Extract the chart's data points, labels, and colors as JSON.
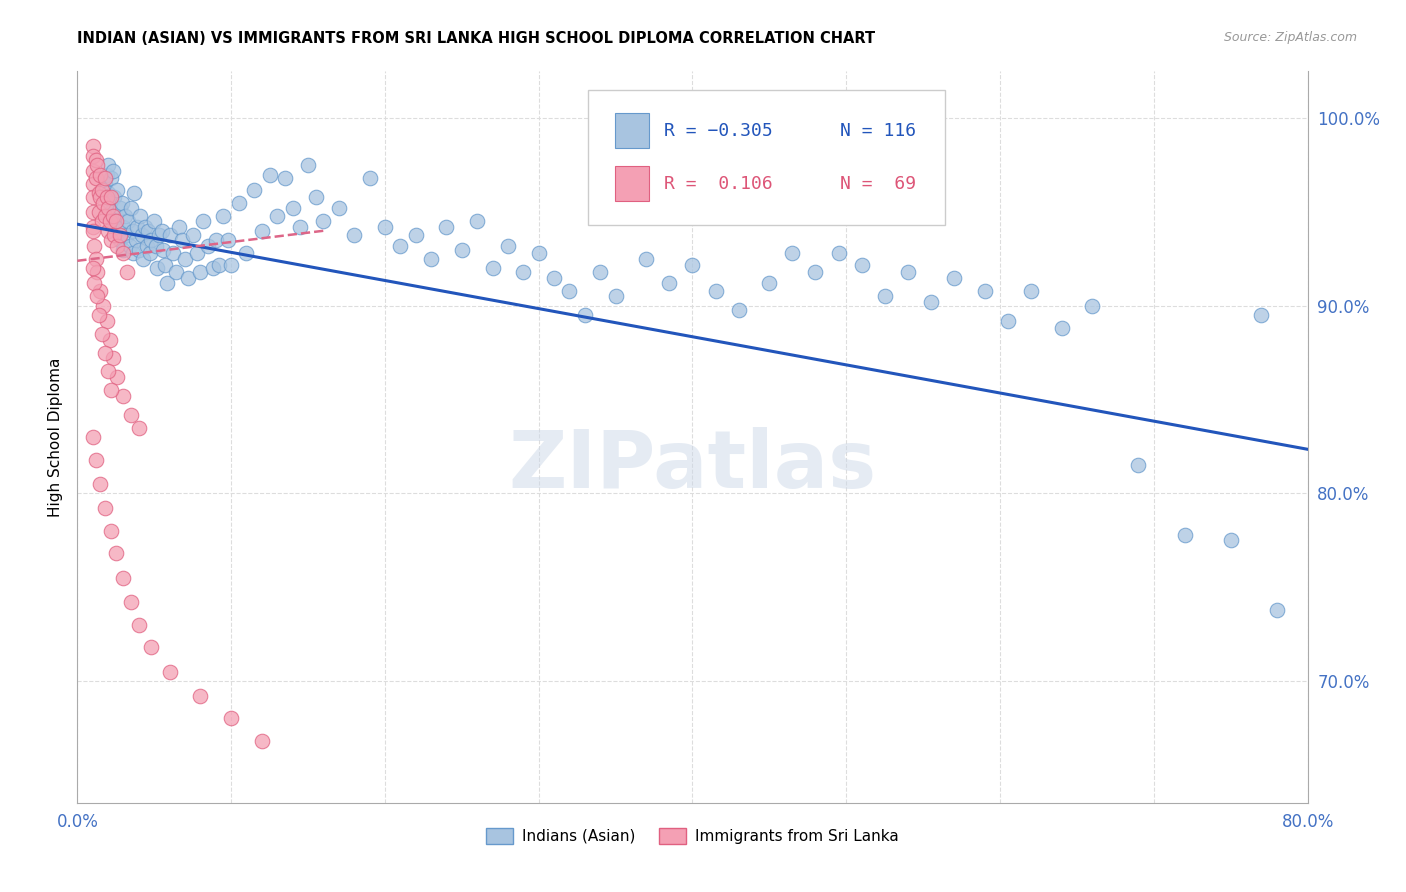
{
  "title": "INDIAN (ASIAN) VS IMMIGRANTS FROM SRI LANKA HIGH SCHOOL DIPLOMA CORRELATION CHART",
  "source": "Source: ZipAtlas.com",
  "ylabel": "High School Diploma",
  "xlim": [
    0.0,
    0.8
  ],
  "ylim": [
    0.635,
    1.025
  ],
  "xtick_positions": [
    0.0,
    0.1,
    0.2,
    0.3,
    0.4,
    0.5,
    0.6,
    0.7,
    0.8
  ],
  "xticklabels": [
    "0.0%",
    "",
    "",
    "",
    "",
    "",
    "",
    "",
    "80.0%"
  ],
  "ytick_positions": [
    0.7,
    0.8,
    0.9,
    1.0
  ],
  "ytick_labels": [
    "70.0%",
    "80.0%",
    "90.0%",
    "100.0%"
  ],
  "indian_color": "#a8c4e0",
  "indian_edge_color": "#6699cc",
  "srilanka_color": "#f4a0b4",
  "srilanka_edge_color": "#e06080",
  "blue_line_color": "#2255bb",
  "pink_line_color": "#dd6688",
  "grid_color": "#dddddd",
  "watermark": "ZIPatlas",
  "watermark_color": "#ccd8e8",
  "background_color": "#ffffff",
  "blue_line_x": [
    0.0,
    0.8
  ],
  "blue_line_y": [
    0.9435,
    0.8235
  ],
  "pink_line_x": [
    0.0,
    0.16
  ],
  "pink_line_y": [
    0.924,
    0.94
  ],
  "indian_scatter_x": [
    0.018,
    0.019,
    0.02,
    0.02,
    0.021,
    0.022,
    0.022,
    0.023,
    0.023,
    0.024,
    0.025,
    0.026,
    0.027,
    0.028,
    0.028,
    0.029,
    0.03,
    0.03,
    0.031,
    0.032,
    0.033,
    0.034,
    0.035,
    0.036,
    0.036,
    0.037,
    0.038,
    0.039,
    0.04,
    0.041,
    0.042,
    0.043,
    0.044,
    0.045,
    0.046,
    0.047,
    0.048,
    0.05,
    0.051,
    0.052,
    0.053,
    0.055,
    0.056,
    0.057,
    0.058,
    0.06,
    0.062,
    0.064,
    0.066,
    0.068,
    0.07,
    0.072,
    0.075,
    0.078,
    0.08,
    0.082,
    0.085,
    0.088,
    0.09,
    0.092,
    0.095,
    0.098,
    0.1,
    0.105,
    0.11,
    0.115,
    0.12,
    0.125,
    0.13,
    0.135,
    0.14,
    0.145,
    0.15,
    0.155,
    0.16,
    0.17,
    0.18,
    0.19,
    0.2,
    0.21,
    0.22,
    0.23,
    0.24,
    0.25,
    0.26,
    0.27,
    0.28,
    0.29,
    0.3,
    0.31,
    0.32,
    0.33,
    0.34,
    0.35,
    0.37,
    0.385,
    0.4,
    0.415,
    0.43,
    0.45,
    0.465,
    0.48,
    0.495,
    0.51,
    0.525,
    0.54,
    0.555,
    0.57,
    0.59,
    0.605,
    0.62,
    0.64,
    0.66,
    0.69,
    0.72,
    0.75,
    0.77,
    0.78
  ],
  "indian_scatter_y": [
    0.965,
    0.97,
    0.975,
    0.96,
    0.955,
    0.968,
    0.95,
    0.972,
    0.945,
    0.958,
    0.948,
    0.962,
    0.94,
    0.952,
    0.935,
    0.955,
    0.942,
    0.93,
    0.948,
    0.938,
    0.945,
    0.932,
    0.952,
    0.94,
    0.928,
    0.96,
    0.935,
    0.942,
    0.93,
    0.948,
    0.938,
    0.925,
    0.942,
    0.932,
    0.94,
    0.928,
    0.935,
    0.945,
    0.932,
    0.92,
    0.938,
    0.94,
    0.93,
    0.922,
    0.912,
    0.938,
    0.928,
    0.918,
    0.942,
    0.935,
    0.925,
    0.915,
    0.938,
    0.928,
    0.918,
    0.945,
    0.932,
    0.92,
    0.935,
    0.922,
    0.948,
    0.935,
    0.922,
    0.955,
    0.928,
    0.962,
    0.94,
    0.97,
    0.948,
    0.968,
    0.952,
    0.942,
    0.975,
    0.958,
    0.945,
    0.952,
    0.938,
    0.968,
    0.942,
    0.932,
    0.938,
    0.925,
    0.942,
    0.93,
    0.945,
    0.92,
    0.932,
    0.918,
    0.928,
    0.915,
    0.908,
    0.895,
    0.918,
    0.905,
    0.925,
    0.912,
    0.922,
    0.908,
    0.898,
    0.912,
    0.928,
    0.918,
    0.928,
    0.922,
    0.905,
    0.918,
    0.902,
    0.915,
    0.908,
    0.892,
    0.908,
    0.888,
    0.9,
    0.815,
    0.778,
    0.775,
    0.895,
    0.738
  ],
  "srilanka_scatter_x": [
    0.01,
    0.01,
    0.01,
    0.01,
    0.01,
    0.01,
    0.01,
    0.012,
    0.012,
    0.013,
    0.014,
    0.014,
    0.015,
    0.015,
    0.016,
    0.016,
    0.017,
    0.018,
    0.018,
    0.019,
    0.02,
    0.02,
    0.021,
    0.022,
    0.022,
    0.023,
    0.024,
    0.025,
    0.026,
    0.028,
    0.03,
    0.032,
    0.01,
    0.011,
    0.012,
    0.013,
    0.015,
    0.017,
    0.019,
    0.021,
    0.023,
    0.026,
    0.03,
    0.035,
    0.04,
    0.01,
    0.011,
    0.013,
    0.014,
    0.016,
    0.018,
    0.02,
    0.022,
    0.01,
    0.012,
    0.015,
    0.018,
    0.022,
    0.025,
    0.03,
    0.035,
    0.04,
    0.048,
    0.06,
    0.08,
    0.1,
    0.12
  ],
  "srilanka_scatter_y": [
    0.985,
    0.98,
    0.972,
    0.965,
    0.958,
    0.95,
    0.942,
    0.978,
    0.968,
    0.975,
    0.96,
    0.95,
    0.97,
    0.958,
    0.962,
    0.945,
    0.955,
    0.968,
    0.948,
    0.958,
    0.952,
    0.94,
    0.945,
    0.958,
    0.935,
    0.948,
    0.938,
    0.945,
    0.932,
    0.938,
    0.928,
    0.918,
    0.94,
    0.932,
    0.925,
    0.918,
    0.908,
    0.9,
    0.892,
    0.882,
    0.872,
    0.862,
    0.852,
    0.842,
    0.835,
    0.92,
    0.912,
    0.905,
    0.895,
    0.885,
    0.875,
    0.865,
    0.855,
    0.83,
    0.818,
    0.805,
    0.792,
    0.78,
    0.768,
    0.755,
    0.742,
    0.73,
    0.718,
    0.705,
    0.692,
    0.68,
    0.668
  ]
}
